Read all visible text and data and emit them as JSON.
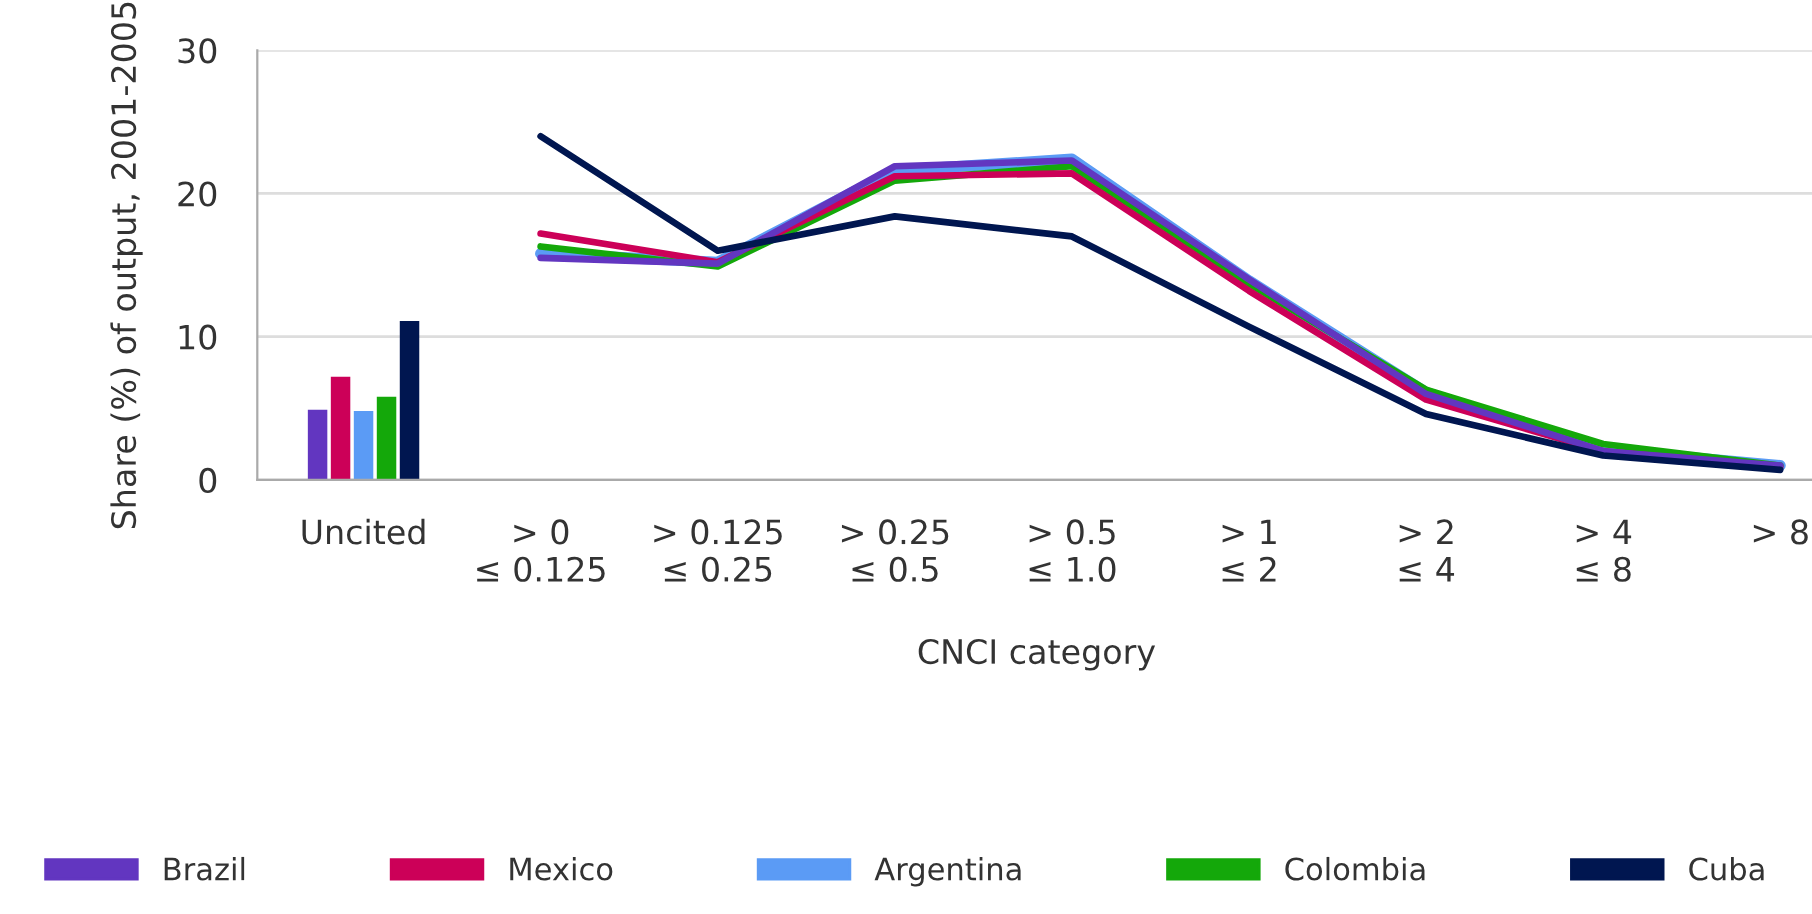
{
  "chart_data": {
    "type": "line",
    "xlabel": "CNCI category",
    "ylabel": "Share (%) of output, 2001-2005",
    "categories": [
      "Uncited",
      "> 0\n≤ 0.125",
      "> 0.125\n≤ 0.25",
      "> 0.25\n≤ 0.5",
      "> 0.5\n≤ 1.0",
      "> 1\n≤ 2",
      "> 2\n≤ 4",
      "> 4\n≤ 8",
      "> 8"
    ],
    "series": [
      {
        "name": "Brazil",
        "type": "bar",
        "color": "#6236c0",
        "values": [
          4.9,
          null,
          null,
          null,
          null,
          null,
          null,
          null,
          null
        ]
      },
      {
        "name": "Mexico",
        "type": "bar",
        "color": "#cc0058",
        "values": [
          7.2,
          null,
          null,
          null,
          null,
          null,
          null,
          null,
          null
        ]
      },
      {
        "name": "Argentina",
        "type": "bar",
        "color": "#5b9bf5",
        "values": [
          4.8,
          null,
          null,
          null,
          null,
          null,
          null,
          null,
          null
        ]
      },
      {
        "name": "Colombia",
        "type": "bar",
        "color": "#14a80a",
        "values": [
          5.8,
          null,
          null,
          null,
          null,
          null,
          null,
          null,
          null
        ]
      },
      {
        "name": "Cuba",
        "type": "bar",
        "color": "#001650",
        "values": [
          11.1,
          null,
          null,
          null,
          null,
          null,
          null,
          null,
          null
        ]
      },
      {
        "color": "#5b9bf5",
        "values": [
          null,
          15.8,
          15.2,
          21.6,
          22.4,
          13.9,
          6.1,
          2.1,
          1.0
        ]
      },
      {
        "color": "#14a80a",
        "values": [
          null,
          16.3,
          14.9,
          20.9,
          21.9,
          13.7,
          6.3,
          2.5,
          1.0
        ]
      },
      {
        "color": "#cc0058",
        "values": [
          null,
          17.2,
          15.2,
          21.2,
          21.4,
          13.2,
          5.6,
          2.0,
          0.9
        ]
      },
      {
        "color": "#6236c0",
        "values": [
          null,
          15.5,
          15.1,
          21.9,
          22.3,
          14.0,
          6.0,
          2.0,
          1.0
        ]
      },
      {
        "color": "#001650",
        "values": [
          null,
          24.0,
          16.0,
          18.4,
          17.0,
          10.7,
          4.6,
          1.7,
          0.7
        ]
      }
    ],
    "ylim": [
      0,
      30
    ],
    "yticks": [
      0,
      10,
      20,
      30
    ],
    "grid": "y",
    "legend": "bottom"
  }
}
